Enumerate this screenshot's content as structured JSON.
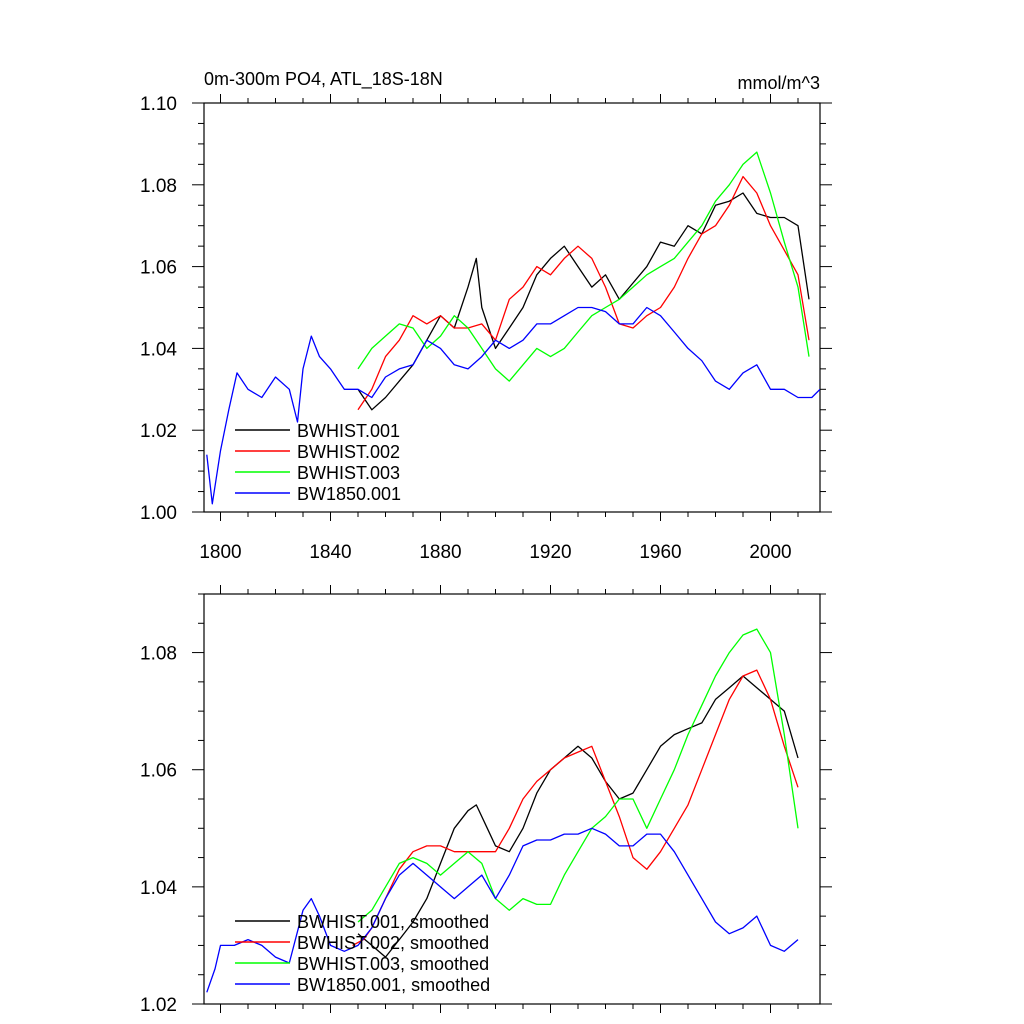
{
  "chart_data": [
    {
      "type": "line",
      "title": "0m-300m PO4, ATL_18S-18N",
      "units": "mmol/m^3",
      "xlabel": "",
      "ylabel": "",
      "xlim": [
        1794,
        2018
      ],
      "ylim": [
        1.0,
        1.1
      ],
      "x_ticks": [
        1800,
        1840,
        1880,
        1920,
        1960,
        2000
      ],
      "y_ticks": [
        1.0,
        1.02,
        1.04,
        1.06,
        1.08,
        1.1
      ],
      "y_tick_labels": [
        "1.00",
        "1.02",
        "1.04",
        "1.06",
        "1.08",
        "1.10"
      ],
      "grid": false,
      "legend_position": "bottom-left",
      "series": [
        {
          "name": "BWHIST.001",
          "color": "#000000",
          "x": [
            1850,
            1855,
            1860,
            1865,
            1870,
            1875,
            1880,
            1885,
            1890,
            1893,
            1895,
            1900,
            1905,
            1910,
            1915,
            1920,
            1925,
            1930,
            1935,
            1940,
            1945,
            1950,
            1955,
            1960,
            1965,
            1970,
            1975,
            1980,
            1985,
            1990,
            1995,
            2000,
            2005,
            2010,
            2014
          ],
          "y": [
            1.03,
            1.025,
            1.028,
            1.032,
            1.036,
            1.042,
            1.048,
            1.045,
            1.055,
            1.062,
            1.05,
            1.04,
            1.045,
            1.05,
            1.058,
            1.062,
            1.065,
            1.06,
            1.055,
            1.058,
            1.052,
            1.056,
            1.06,
            1.066,
            1.065,
            1.07,
            1.068,
            1.075,
            1.076,
            1.078,
            1.073,
            1.072,
            1.072,
            1.07,
            1.052
          ]
        },
        {
          "name": "BWHIST.002",
          "color": "#ff0000",
          "x": [
            1850,
            1855,
            1860,
            1865,
            1870,
            1875,
            1880,
            1885,
            1890,
            1895,
            1900,
            1905,
            1910,
            1915,
            1920,
            1925,
            1930,
            1935,
            1940,
            1945,
            1950,
            1955,
            1960,
            1965,
            1970,
            1975,
            1980,
            1985,
            1990,
            1995,
            2000,
            2005,
            2010,
            2014
          ],
          "y": [
            1.025,
            1.03,
            1.038,
            1.042,
            1.048,
            1.046,
            1.048,
            1.045,
            1.045,
            1.046,
            1.042,
            1.052,
            1.055,
            1.06,
            1.058,
            1.062,
            1.065,
            1.062,
            1.055,
            1.046,
            1.045,
            1.048,
            1.05,
            1.055,
            1.062,
            1.068,
            1.07,
            1.075,
            1.082,
            1.078,
            1.07,
            1.064,
            1.058,
            1.042
          ]
        },
        {
          "name": "BWHIST.003",
          "color": "#00ff00",
          "x": [
            1850,
            1855,
            1860,
            1865,
            1870,
            1875,
            1880,
            1885,
            1890,
            1895,
            1900,
            1905,
            1910,
            1915,
            1920,
            1925,
            1930,
            1935,
            1940,
            1945,
            1950,
            1955,
            1960,
            1965,
            1970,
            1975,
            1980,
            1985,
            1990,
            1995,
            2000,
            2005,
            2010,
            2014
          ],
          "y": [
            1.035,
            1.04,
            1.043,
            1.046,
            1.045,
            1.04,
            1.043,
            1.048,
            1.045,
            1.04,
            1.035,
            1.032,
            1.036,
            1.04,
            1.038,
            1.04,
            1.044,
            1.048,
            1.05,
            1.052,
            1.055,
            1.058,
            1.06,
            1.062,
            1.066,
            1.07,
            1.076,
            1.08,
            1.085,
            1.088,
            1.078,
            1.066,
            1.055,
            1.038
          ]
        },
        {
          "name": "BW1850.001",
          "color": "#0000ff",
          "x": [
            1795,
            1797,
            1800,
            1803,
            1806,
            1810,
            1815,
            1820,
            1825,
            1828,
            1830,
            1833,
            1836,
            1840,
            1845,
            1850,
            1855,
            1860,
            1865,
            1870,
            1875,
            1880,
            1885,
            1890,
            1895,
            1900,
            1905,
            1910,
            1915,
            1920,
            1925,
            1930,
            1935,
            1940,
            1945,
            1950,
            1955,
            1960,
            1965,
            1970,
            1975,
            1980,
            1985,
            1990,
            1995,
            2000,
            2005,
            2010,
            2015,
            2018
          ],
          "y": [
            1.014,
            1.002,
            1.015,
            1.025,
            1.034,
            1.03,
            1.028,
            1.033,
            1.03,
            1.022,
            1.035,
            1.043,
            1.038,
            1.035,
            1.03,
            1.03,
            1.028,
            1.033,
            1.035,
            1.036,
            1.042,
            1.04,
            1.036,
            1.035,
            1.038,
            1.042,
            1.04,
            1.042,
            1.046,
            1.046,
            1.048,
            1.05,
            1.05,
            1.049,
            1.046,
            1.046,
            1.05,
            1.048,
            1.044,
            1.04,
            1.037,
            1.032,
            1.03,
            1.034,
            1.036,
            1.03,
            1.03,
            1.028,
            1.028,
            1.03
          ]
        }
      ]
    },
    {
      "type": "line",
      "title": "",
      "xlim": [
        1794,
        2018
      ],
      "ylim": [
        1.02,
        1.09
      ],
      "x_ticks": [
        1800,
        1840,
        1880,
        1920,
        1960,
        2000
      ],
      "y_ticks": [
        1.02,
        1.04,
        1.06,
        1.08
      ],
      "y_tick_labels": [
        "1.02",
        "1.04",
        "1.06",
        "1.08"
      ],
      "grid": false,
      "legend_position": "bottom-left",
      "series": [
        {
          "name": "BWHIST.001, smoothed",
          "color": "#000000",
          "x": [
            1850,
            1855,
            1860,
            1865,
            1870,
            1875,
            1880,
            1885,
            1890,
            1893,
            1897,
            1900,
            1905,
            1910,
            1915,
            1920,
            1925,
            1930,
            1935,
            1940,
            1945,
            1950,
            1955,
            1960,
            1965,
            1970,
            1975,
            1980,
            1985,
            1990,
            1995,
            2000,
            2005,
            2010
          ],
          "y": [
            1.032,
            1.03,
            1.028,
            1.031,
            1.034,
            1.038,
            1.044,
            1.05,
            1.053,
            1.054,
            1.05,
            1.047,
            1.046,
            1.05,
            1.056,
            1.06,
            1.062,
            1.064,
            1.062,
            1.058,
            1.055,
            1.056,
            1.06,
            1.064,
            1.066,
            1.067,
            1.068,
            1.072,
            1.074,
            1.076,
            1.074,
            1.072,
            1.07,
            1.062
          ]
        },
        {
          "name": "BWHIST.002, smoothed",
          "color": "#ff0000",
          "x": [
            1848,
            1852,
            1855,
            1860,
            1865,
            1870,
            1875,
            1880,
            1885,
            1890,
            1895,
            1900,
            1905,
            1910,
            1915,
            1920,
            1925,
            1930,
            1935,
            1940,
            1945,
            1950,
            1955,
            1960,
            1965,
            1970,
            1975,
            1980,
            1985,
            1990,
            1995,
            2000,
            2005,
            2010
          ],
          "y": [
            1.03,
            1.031,
            1.033,
            1.038,
            1.043,
            1.046,
            1.047,
            1.047,
            1.046,
            1.046,
            1.046,
            1.046,
            1.05,
            1.055,
            1.058,
            1.06,
            1.062,
            1.063,
            1.064,
            1.058,
            1.052,
            1.045,
            1.043,
            1.046,
            1.05,
            1.054,
            1.06,
            1.066,
            1.072,
            1.076,
            1.077,
            1.072,
            1.064,
            1.057
          ]
        },
        {
          "name": "BWHIST.003, smoothed",
          "color": "#00ff00",
          "x": [
            1850,
            1855,
            1860,
            1865,
            1870,
            1875,
            1880,
            1885,
            1890,
            1895,
            1900,
            1905,
            1910,
            1915,
            1920,
            1925,
            1930,
            1935,
            1940,
            1945,
            1950,
            1955,
            1960,
            1965,
            1970,
            1975,
            1980,
            1985,
            1990,
            1995,
            2000,
            2005,
            2010
          ],
          "y": [
            1.034,
            1.036,
            1.04,
            1.044,
            1.045,
            1.044,
            1.042,
            1.044,
            1.046,
            1.044,
            1.038,
            1.036,
            1.038,
            1.037,
            1.037,
            1.042,
            1.046,
            1.05,
            1.052,
            1.055,
            1.055,
            1.05,
            1.055,
            1.06,
            1.066,
            1.071,
            1.076,
            1.08,
            1.083,
            1.084,
            1.08,
            1.066,
            1.05
          ]
        },
        {
          "name": "BW1850.001, smoothed",
          "color": "#0000ff",
          "x": [
            1795,
            1798,
            1800,
            1805,
            1810,
            1815,
            1820,
            1825,
            1830,
            1833,
            1836,
            1840,
            1845,
            1850,
            1855,
            1860,
            1865,
            1870,
            1875,
            1880,
            1885,
            1890,
            1895,
            1900,
            1905,
            1910,
            1915,
            1920,
            1925,
            1930,
            1935,
            1940,
            1945,
            1950,
            1955,
            1960,
            1965,
            1970,
            1975,
            1980,
            1985,
            1990,
            1995,
            2000,
            2005,
            2010
          ],
          "y": [
            1.022,
            1.026,
            1.03,
            1.03,
            1.031,
            1.03,
            1.028,
            1.027,
            1.036,
            1.038,
            1.035,
            1.03,
            1.029,
            1.03,
            1.033,
            1.038,
            1.042,
            1.044,
            1.042,
            1.04,
            1.038,
            1.04,
            1.042,
            1.038,
            1.042,
            1.047,
            1.048,
            1.048,
            1.049,
            1.049,
            1.05,
            1.049,
            1.047,
            1.047,
            1.049,
            1.049,
            1.046,
            1.042,
            1.038,
            1.034,
            1.032,
            1.033,
            1.035,
            1.03,
            1.029,
            1.031
          ]
        }
      ]
    }
  ]
}
